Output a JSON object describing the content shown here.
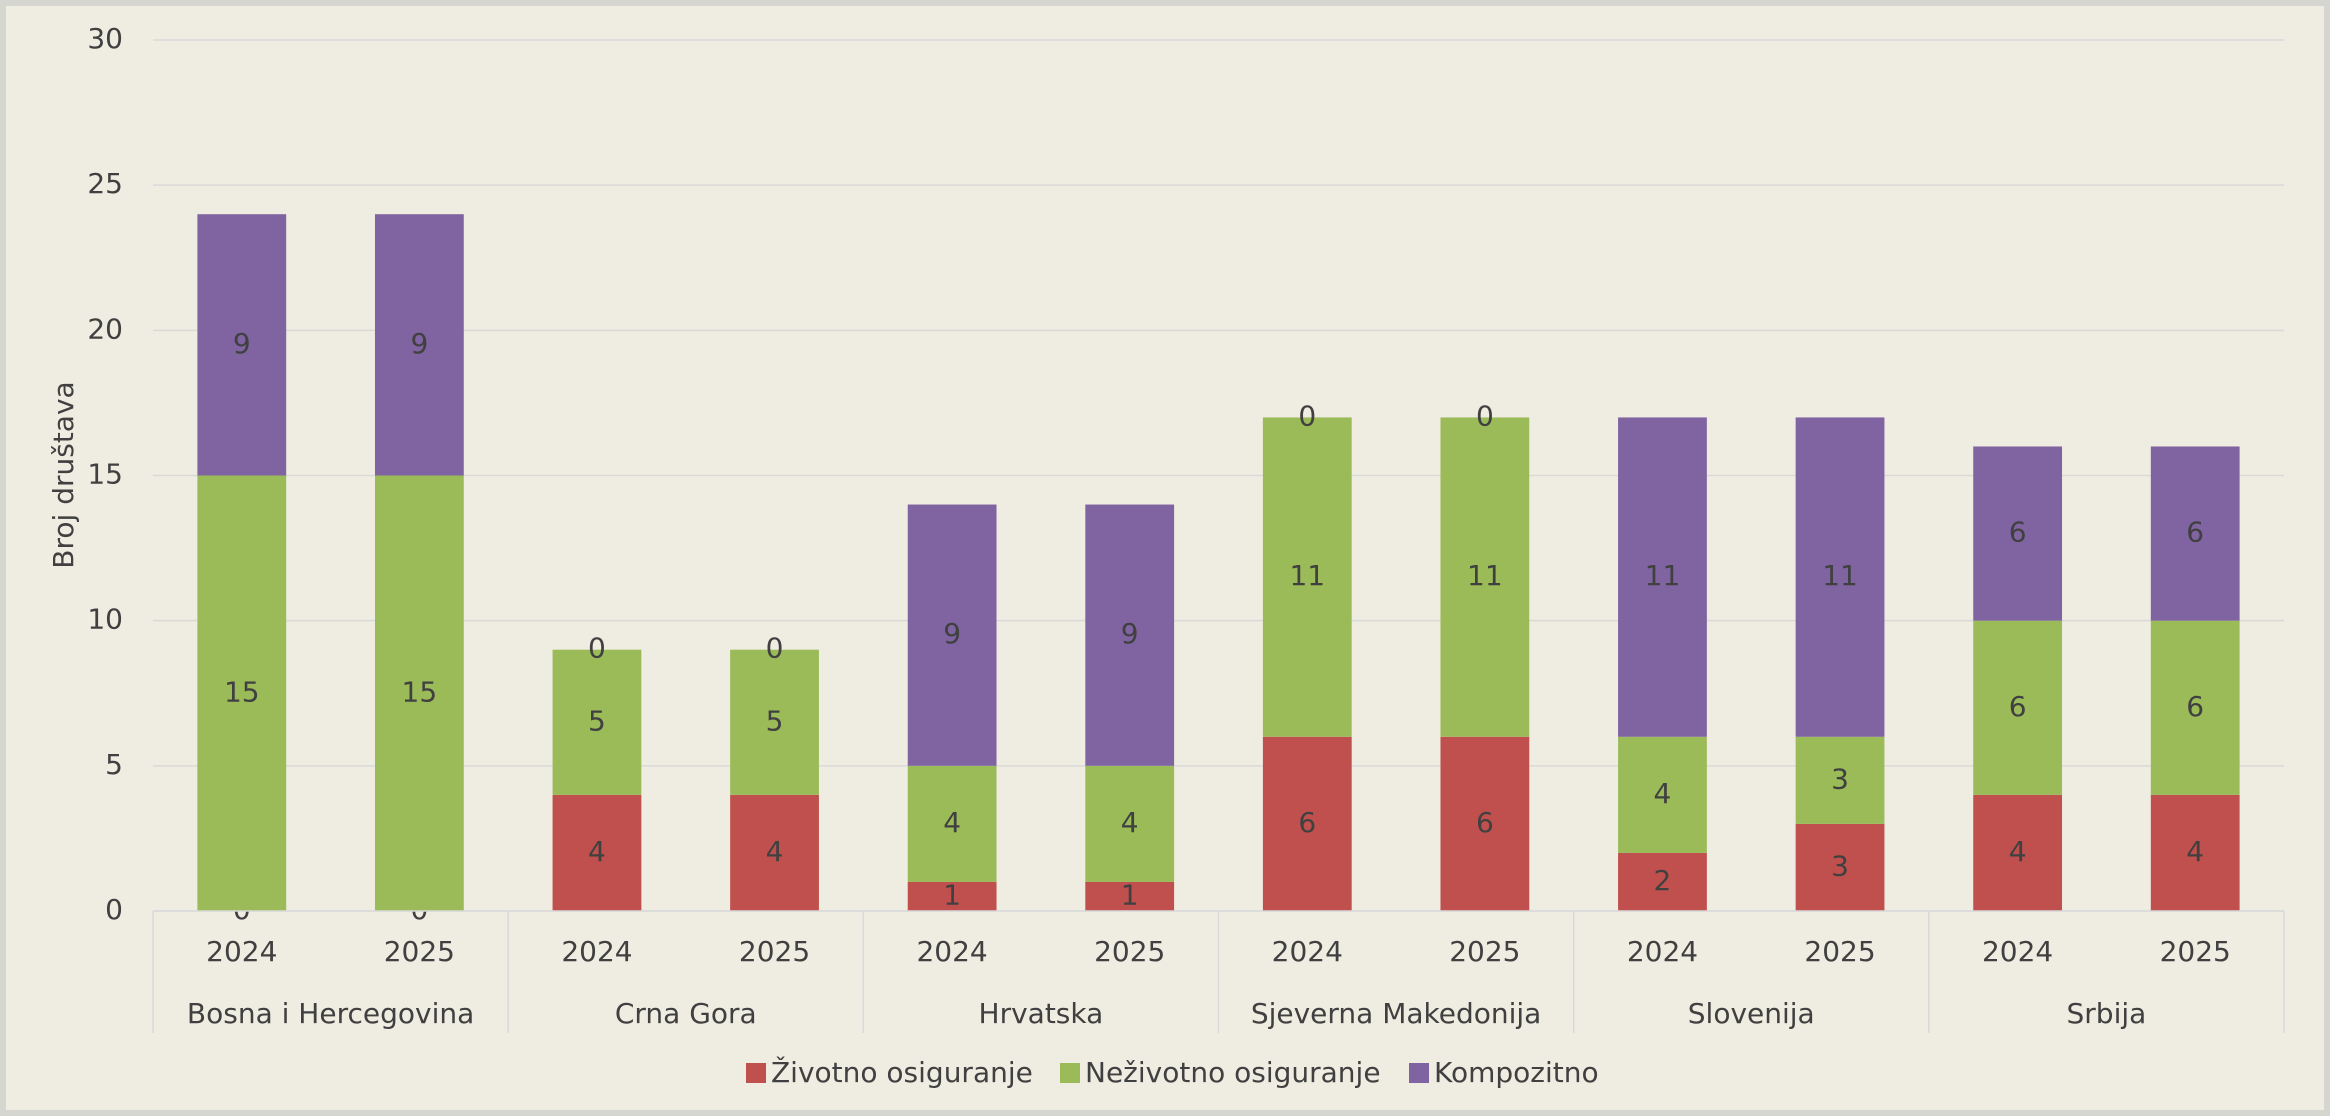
{
  "chart_data": {
    "type": "stacked_bar",
    "y_label": "Broj društava",
    "categories": [
      "2024",
      "2025",
      "2024",
      "2025",
      "2024",
      "2025",
      "2024",
      "2025",
      "2024",
      "2025",
      "2024",
      "2025"
    ],
    "groups": [
      "Bosna i Hercegovina",
      "Crna Gora",
      "Hrvatska",
      "Sjeverna Makedonija",
      "Slovenija",
      "Srbija"
    ],
    "series": [
      {
        "name": "Životno osiguranje",
        "color": "#c0504d",
        "values": [
          0,
          0,
          4,
          4,
          1,
          1,
          6,
          6,
          2,
          3,
          4,
          4
        ]
      },
      {
        "name": "Neživotno osiguranje",
        "color": "#9bbb59",
        "values": [
          15,
          15,
          5,
          5,
          4,
          4,
          11,
          11,
          4,
          3,
          6,
          6
        ]
      },
      {
        "name": "Kompozitno",
        "color": "#8064a2",
        "values": [
          9,
          9,
          0,
          0,
          9,
          9,
          0,
          0,
          11,
          11,
          6,
          6
        ]
      }
    ],
    "ylim": [
      0,
      30
    ],
    "yticks": [
      0,
      5,
      10,
      15,
      20,
      25,
      30
    ],
    "grid": true,
    "legend": "bottom"
  }
}
